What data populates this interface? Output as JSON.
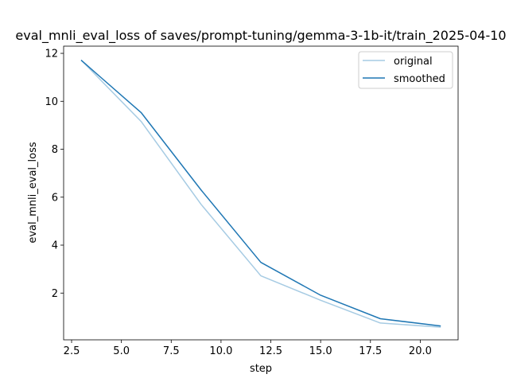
{
  "chart_data": {
    "type": "line",
    "title": "eval_mnli_eval_loss of saves/prompt-tuning/gemma-3-1b-it/train_2025-04-10",
    "xlabel": "step",
    "ylabel": "eval_mnli_eval_loss",
    "xlim": [
      2.1,
      21.9
    ],
    "ylim": [
      0.05,
      12.3
    ],
    "xticks": [
      2.5,
      5.0,
      7.5,
      10.0,
      12.5,
      15.0,
      17.5,
      20.0
    ],
    "xtick_labels": [
      "2.5",
      "5.0",
      "7.5",
      "10.0",
      "12.5",
      "15.0",
      "17.5",
      "20.0"
    ],
    "yticks": [
      2,
      4,
      6,
      8,
      10,
      12
    ],
    "ytick_labels": [
      "2",
      "4",
      "6",
      "8",
      "10",
      "12"
    ],
    "grid": false,
    "legend_position": "top-right",
    "x": [
      3,
      6,
      9,
      12,
      15,
      18,
      21
    ],
    "series": [
      {
        "name": "original",
        "color": "#a6cbe3",
        "values": [
          11.7,
          9.15,
          5.7,
          2.72,
          1.7,
          0.75,
          0.58
        ]
      },
      {
        "name": "smoothed",
        "color": "#1f77b4",
        "values": [
          11.7,
          9.52,
          6.3,
          3.28,
          1.91,
          0.93,
          0.63
        ]
      }
    ]
  }
}
